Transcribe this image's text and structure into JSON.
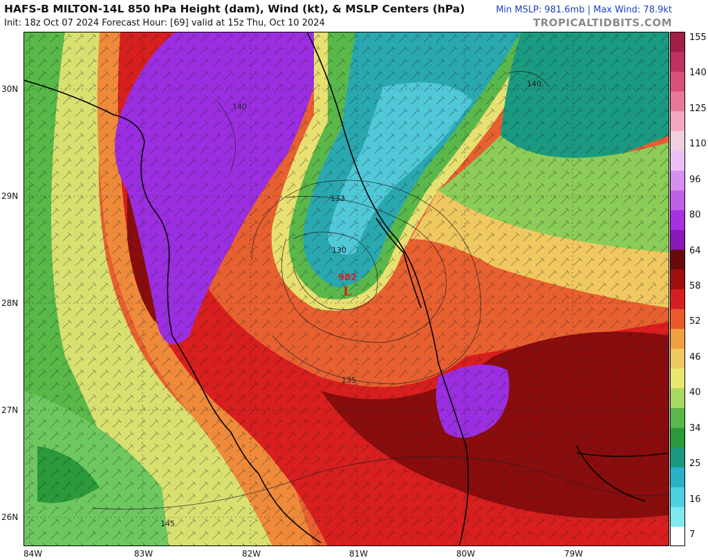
{
  "header": {
    "title": "HAFS-B MILTON-14L 850 hPa Height (dam), Wind (kt), & MSLP Centers (hPa)",
    "subtitle": "Init: 18z Oct 07 2024   Forecast Hour: [69]   valid at 15z Thu, Oct 10 2024",
    "stats": "Min MSLP: 981.6mb | Max Wind: 78.9kt",
    "credit": "TROPICALTIDBITS.COM"
  },
  "map": {
    "latitude_labels": [
      "30N",
      "29N",
      "28N",
      "27N",
      "26N"
    ],
    "longitude_labels": [
      "84W",
      "83W",
      "82W",
      "81W",
      "80W",
      "79W"
    ],
    "low_center": {
      "pressure": "982",
      "symbol": "L",
      "color": "#d42020"
    },
    "height_contours": [
      "140",
      "133",
      "130",
      "135",
      "145",
      "140"
    ]
  },
  "colorbar": {
    "labels": [
      "155",
      "140",
      "125",
      "110",
      "96",
      "80",
      "64",
      "58",
      "52",
      "46",
      "40",
      "34",
      "25",
      "16",
      "7"
    ],
    "colors": [
      "#ffffff",
      "#7fe8f0",
      "#4fd0e0",
      "#2ab0c8",
      "#1a9a80",
      "#2a9a3a",
      "#5ab84a",
      "#a8d860",
      "#e8e870",
      "#f0c860",
      "#f0a040",
      "#e85a2a",
      "#d42020",
      "#a01010",
      "#6a0a0a",
      "#8a1ab8",
      "#a830e0",
      "#c060e8",
      "#d890f0",
      "#ecc0f6",
      "#f0d0e0",
      "#f4a8c0",
      "#e87898",
      "#d85078",
      "#c03060",
      "#a02048"
    ]
  },
  "colors": {
    "purple": "#9b2ee0",
    "darkred": "#8a0c0c",
    "red": "#d81e1e",
    "orange": "#ee7030",
    "yellow": "#f0e070",
    "green": "#7cc850",
    "teal": "#2aa8b0"
  }
}
